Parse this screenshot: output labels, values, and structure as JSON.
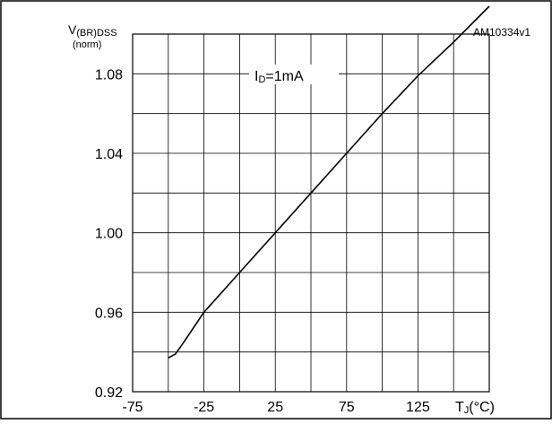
{
  "chart_data": {
    "type": "line",
    "reference_code": "AM10334v1",
    "ylabel": "V(BR)DSS",
    "ylabel_main": "V",
    "ylabel_subscript": "(BR)DSS",
    "ylabel_unit": "(norm)",
    "xlabel_main": "T",
    "xlabel_subscript": "J",
    "xlabel_unit": "(°C)",
    "annotation_main": "I",
    "annotation_subscript": "D",
    "annotation_value": "=1mA",
    "xlim": [
      -75,
      175
    ],
    "ylim": [
      0.92,
      1.1
    ],
    "x_ticks": [
      -75,
      -25,
      25,
      75,
      125
    ],
    "x_tick_labels": [
      "-75",
      "-25",
      "25",
      "75",
      "125"
    ],
    "y_ticks": [
      0.92,
      0.96,
      1.0,
      1.04,
      1.08
    ],
    "y_tick_labels": [
      "0.92",
      "0.96",
      "1.00",
      "1.04",
      "1.08"
    ],
    "grid": true,
    "series": [
      {
        "x": [
          -50,
          -45,
          -40,
          -25,
          0,
          25,
          50,
          75,
          100,
          125,
          150,
          175
        ],
        "y": [
          0.937,
          0.939,
          0.944,
          0.96,
          0.98,
          1.0,
          1.02,
          1.04,
          1.06,
          1.079,
          1.096,
          1.114
        ]
      }
    ]
  }
}
